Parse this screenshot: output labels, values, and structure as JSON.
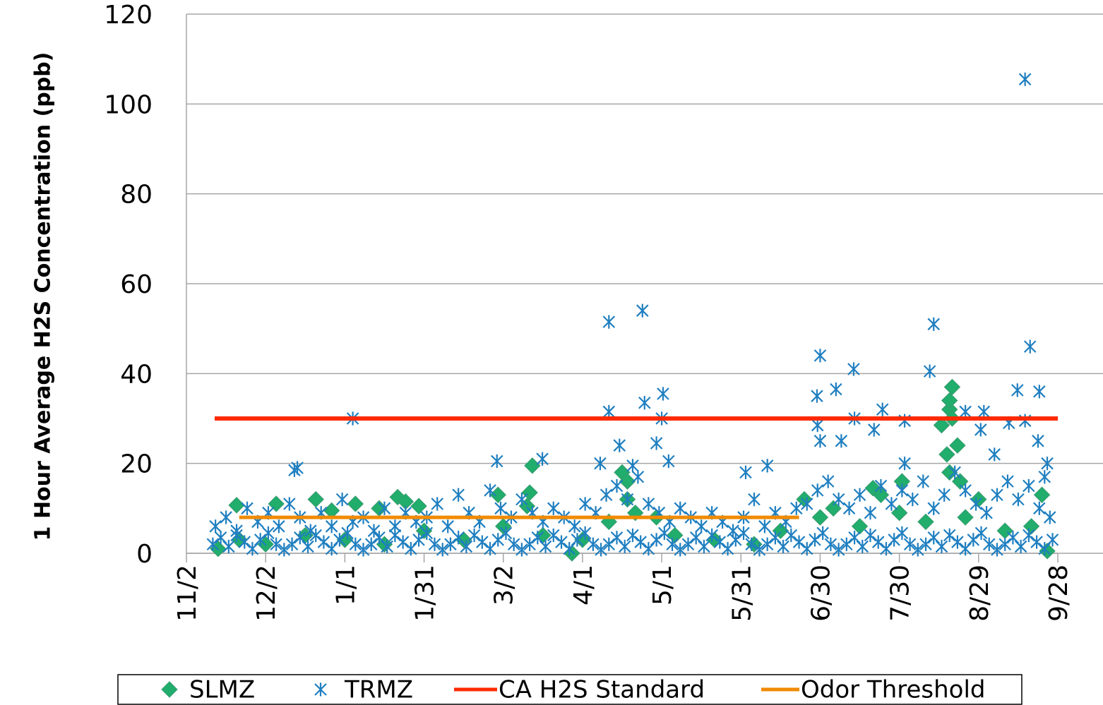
{
  "chart_data": {
    "type": "scatter",
    "ylabel": "1 Hour Average H2S Concentration (ppb)",
    "xlim": [
      0,
      330
    ],
    "xticks": [
      {
        "value": 0,
        "label": "11/2"
      },
      {
        "value": 30,
        "label": "12/2"
      },
      {
        "value": 60,
        "label": "1/1"
      },
      {
        "value": 90,
        "label": "1/31"
      },
      {
        "value": 120,
        "label": "3/2"
      },
      {
        "value": 150,
        "label": "4/1"
      },
      {
        "value": 180,
        "label": "5/1"
      },
      {
        "value": 210,
        "label": "5/31"
      },
      {
        "value": 240,
        "label": "6/30"
      },
      {
        "value": 270,
        "label": "7/30"
      },
      {
        "value": 300,
        "label": "8/29"
      },
      {
        "value": 330,
        "label": "9/28"
      }
    ],
    "ylim": [
      0,
      120
    ],
    "yticks": [
      0,
      20,
      40,
      60,
      80,
      100,
      120
    ],
    "grid": true,
    "legend": "bottom",
    "series": [
      {
        "name": "SLMZ",
        "color": "#21ad6b",
        "marker": "diamond",
        "x": [
          19,
          34,
          49,
          55,
          64,
          73,
          80,
          83,
          88,
          118,
          130,
          131,
          129,
          165,
          167,
          167,
          178,
          234,
          245,
          260,
          263,
          271,
          286,
          289,
          289,
          290,
          290,
          292,
          288,
          289,
          293,
          300,
          324,
          326,
          146,
          12,
          20,
          30,
          45,
          60,
          75,
          90,
          105,
          120,
          135,
          150,
          160,
          170,
          185,
          200,
          215,
          225,
          240,
          255,
          270,
          280,
          295,
          310,
          320
        ],
        "values": [
          10.7,
          11,
          12,
          9.5,
          11,
          10,
          12.5,
          11.5,
          10.5,
          13,
          13.5,
          19.5,
          10.5,
          18,
          16,
          12,
          8,
          12,
          10,
          14.5,
          13,
          16,
          28.5,
          32,
          34,
          37,
          30,
          24,
          22,
          18,
          16,
          12,
          13,
          0.5,
          0,
          1,
          3,
          2,
          4,
          3,
          2,
          5,
          3,
          6,
          4,
          3,
          7,
          9,
          4,
          3,
          2,
          5,
          8,
          6,
          9,
          7,
          8,
          5,
          6
        ]
      },
      {
        "name": "TRMZ",
        "color": "#1f7fc0",
        "marker": "asterisk",
        "x": [
          317.6,
          172.7,
          160,
          283,
          319.5,
          240,
          252.7,
          281.5,
          246,
          314.7,
          323,
          180.5,
          238.8,
          173.5,
          263.6,
          160,
          295,
          302,
          63,
          180,
          253,
          272,
          311.5,
          317.6,
          239,
          260.4,
          300.8,
          322.5,
          178,
          164,
          240,
          248,
          306,
          134.8,
          182.6,
          117.6,
          156.7,
          169,
          220,
          40.9,
          211.8,
          325,
          272,
          326,
          42,
          10,
          13,
          16,
          19,
          22,
          25,
          28,
          31,
          34,
          37,
          40,
          43,
          46,
          49,
          52,
          55,
          58,
          61,
          64,
          67,
          70,
          73,
          76,
          79,
          82,
          85,
          88,
          91,
          94,
          97,
          100,
          103,
          106,
          109,
          112,
          115,
          118,
          121,
          124,
          127,
          130,
          133,
          136,
          139,
          142,
          145,
          148,
          151,
          154,
          157,
          160,
          163,
          166,
          169,
          172,
          175,
          178,
          181,
          184,
          187,
          190,
          193,
          196,
          199,
          202,
          205,
          208,
          211,
          214,
          217,
          220,
          223,
          226,
          229,
          232,
          235,
          238,
          241,
          244,
          247,
          250,
          253,
          256,
          259,
          262,
          265,
          268,
          271,
          274,
          277,
          280,
          283,
          286,
          289,
          292,
          295,
          298,
          301,
          304,
          307,
          310,
          313,
          316,
          319,
          322,
          325,
          328,
          11,
          15,
          19,
          23,
          27,
          31,
          35,
          39,
          43,
          47,
          51,
          55,
          59,
          63,
          67,
          71,
          75,
          79,
          83,
          87,
          91,
          95,
          99,
          103,
          107,
          111,
          115,
          119,
          123,
          127,
          131,
          135,
          139,
          143,
          147,
          151,
          155,
          159,
          163,
          167,
          171,
          175,
          179,
          183,
          187,
          191,
          195,
          199,
          203,
          207,
          211,
          215,
          219,
          223,
          227,
          231,
          235,
          239,
          243,
          247,
          251,
          255,
          259,
          263,
          267,
          271,
          275,
          279,
          283,
          287,
          291,
          295,
          299,
          303,
          307,
          311,
          315,
          319,
          323,
          327
        ],
        "values": [
          105.5,
          54,
          51.5,
          51,
          46,
          44,
          41,
          40.5,
          36.5,
          36.3,
          36,
          35.5,
          35,
          33.5,
          32,
          31.5,
          31.5,
          31.5,
          30,
          30,
          30,
          29.5,
          29,
          29.5,
          28.5,
          27.5,
          27.5,
          25,
          24.5,
          24,
          25,
          25,
          22,
          21,
          20.5,
          20.5,
          20,
          19.5,
          19.5,
          18.5,
          18,
          17,
          20,
          20,
          19,
          2,
          3.5,
          1.5,
          4,
          2.5,
          1,
          3,
          4.5,
          2,
          0.8,
          2,
          3.5,
          1.5,
          4,
          2.5,
          1,
          3,
          4.5,
          2,
          0.8,
          2,
          3.5,
          1.5,
          4,
          2.5,
          1,
          3,
          4.5,
          2,
          0.8,
          2,
          3.5,
          1.5,
          4,
          2.5,
          1,
          3,
          4.5,
          2,
          0.8,
          2,
          3.5,
          1.5,
          4,
          2.5,
          1,
          3,
          4.5,
          2,
          0.8,
          2,
          3.5,
          1.5,
          4,
          2.5,
          1,
          3,
          4.5,
          2,
          0.8,
          2,
          3.5,
          1.5,
          4,
          2.5,
          1,
          3,
          4.5,
          2,
          0.8,
          2,
          3.5,
          1.5,
          4,
          2.5,
          1,
          3,
          4.5,
          2,
          0.8,
          2,
          3.5,
          1.5,
          4,
          2.5,
          1,
          3,
          4.5,
          2,
          0.8,
          2,
          3.5,
          1.5,
          4,
          2.5,
          1,
          3,
          4.5,
          2,
          0.8,
          2,
          3.5,
          1.5,
          4,
          2.5,
          1,
          3,
          6,
          8,
          5,
          10,
          7,
          9,
          6,
          11,
          8,
          5,
          9,
          6,
          12,
          7,
          8,
          5,
          10,
          6,
          9,
          7,
          8,
          11,
          6,
          13,
          9,
          7,
          14,
          10,
          8,
          12,
          9,
          7,
          10,
          8,
          6,
          11,
          9,
          13,
          15,
          12,
          17,
          11,
          9,
          7,
          10,
          8,
          6,
          9,
          7,
          5,
          8,
          12,
          6,
          9,
          7,
          10,
          11,
          14,
          16,
          12,
          10,
          13,
          9,
          15,
          11,
          14,
          12,
          16,
          10,
          13,
          18,
          14,
          11,
          9,
          13,
          16,
          12,
          15,
          10,
          8
        ]
      },
      {
        "name": "CA H2S Standard",
        "color": "#ff2a00",
        "marker": "line",
        "x": [
          10.7,
          330
        ],
        "values": [
          30,
          30
        ]
      },
      {
        "name": "Odor Threshold",
        "color": "#f08a00",
        "marker": "line",
        "x": [
          20,
          232
        ],
        "values": [
          8,
          8
        ]
      }
    ]
  }
}
